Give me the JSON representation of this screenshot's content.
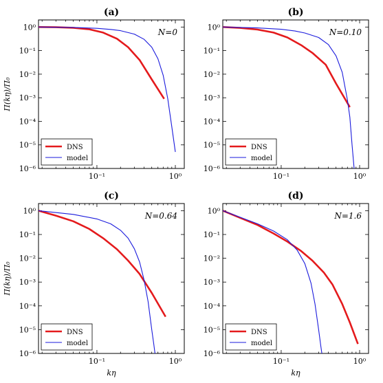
{
  "chart_data": [
    {
      "type": "line",
      "title": "(a)",
      "annotation": "N=0",
      "xlabel": "",
      "ylabel": "Π(kη)/Π₀",
      "xscale": "log",
      "yscale": "log",
      "xlim": [
        0.018,
        1.3
      ],
      "ylim": [
        1e-06,
        2
      ],
      "x_ticks": [
        "10⁻¹",
        "10⁰"
      ],
      "y_ticks": [
        "10⁰",
        "10⁻¹",
        "10⁻²",
        "10⁻³",
        "10⁻⁴",
        "10⁻⁵",
        "10⁻⁶"
      ],
      "legend_position": "lower-left",
      "series": [
        {
          "name": "DNS",
          "color": "#e41a1c",
          "x": [
            0.018,
            0.03,
            0.05,
            0.08,
            0.12,
            0.18,
            0.25,
            0.35,
            0.5,
            0.72
          ],
          "y": [
            1.0,
            0.98,
            0.93,
            0.8,
            0.58,
            0.32,
            0.14,
            0.04,
            0.006,
            0.0009
          ]
        },
        {
          "name": "model",
          "color": "#1a1adc",
          "x": [
            0.018,
            0.05,
            0.1,
            0.15,
            0.2,
            0.3,
            0.4,
            0.5,
            0.6,
            0.7,
            0.8,
            0.9,
            1.0
          ],
          "y": [
            1.0,
            0.96,
            0.88,
            0.79,
            0.7,
            0.5,
            0.3,
            0.14,
            0.045,
            0.009,
            0.0009,
            6e-05,
            5e-06
          ]
        }
      ]
    },
    {
      "type": "line",
      "title": "(b)",
      "annotation": "N=0.10",
      "xlabel": "",
      "ylabel": "",
      "xscale": "log",
      "yscale": "log",
      "xlim": [
        0.018,
        1.3
      ],
      "ylim": [
        1e-06,
        2
      ],
      "x_ticks": [
        "10⁻¹",
        "10⁰"
      ],
      "y_ticks": [
        "10⁰",
        "10⁻¹",
        "10⁻²",
        "10⁻³",
        "10⁻⁴",
        "10⁻⁵",
        "10⁻⁶"
      ],
      "legend_position": "lower-left",
      "series": [
        {
          "name": "DNS",
          "color": "#e41a1c",
          "x": [
            0.018,
            0.03,
            0.05,
            0.08,
            0.12,
            0.18,
            0.25,
            0.37,
            0.5,
            0.75
          ],
          "y": [
            1.0,
            0.92,
            0.78,
            0.58,
            0.36,
            0.17,
            0.08,
            0.025,
            0.004,
            0.0004
          ]
        },
        {
          "name": "model",
          "color": "#1a1adc",
          "x": [
            0.018,
            0.05,
            0.1,
            0.15,
            0.2,
            0.3,
            0.4,
            0.5,
            0.6,
            0.7,
            0.75,
            0.8,
            0.85
          ],
          "y": [
            1.0,
            0.92,
            0.8,
            0.68,
            0.56,
            0.36,
            0.18,
            0.06,
            0.012,
            0.0008,
            0.00015,
            1e-05,
            1e-06
          ]
        }
      ]
    },
    {
      "type": "line",
      "title": "(c)",
      "annotation": "N=0.64",
      "xlabel": "kη",
      "ylabel": "Π(kη)/Π₀",
      "xscale": "log",
      "yscale": "log",
      "xlim": [
        0.018,
        1.3
      ],
      "ylim": [
        1e-06,
        2
      ],
      "x_ticks": [
        "10⁻¹",
        "10⁰"
      ],
      "y_ticks": [
        "10⁰",
        "10⁻¹",
        "10⁻²",
        "10⁻³",
        "10⁻⁴",
        "10⁻⁵",
        "10⁻⁶"
      ],
      "legend_position": "lower-left",
      "series": [
        {
          "name": "DNS",
          "color": "#e41a1c",
          "x": [
            0.018,
            0.03,
            0.05,
            0.08,
            0.12,
            0.18,
            0.25,
            0.35,
            0.5,
            0.75
          ],
          "y": [
            1.0,
            0.62,
            0.36,
            0.17,
            0.07,
            0.024,
            0.008,
            0.0022,
            0.00035,
            3.5e-05
          ]
        },
        {
          "name": "model",
          "color": "#1a1adc",
          "x": [
            0.018,
            0.05,
            0.1,
            0.15,
            0.2,
            0.25,
            0.3,
            0.35,
            0.4,
            0.45,
            0.5,
            0.53,
            0.55
          ],
          "y": [
            1.0,
            0.7,
            0.45,
            0.28,
            0.15,
            0.07,
            0.025,
            0.007,
            0.0012,
            0.00015,
            1e-05,
            2.5e-06,
            1e-06
          ]
        }
      ]
    },
    {
      "type": "line",
      "title": "(d)",
      "annotation": "N=1.6",
      "xlabel": "kη",
      "ylabel": "",
      "xscale": "log",
      "yscale": "log",
      "xlim": [
        0.018,
        1.3
      ],
      "ylim": [
        1e-06,
        2
      ],
      "x_ticks": [
        "10⁻¹",
        "10⁰"
      ],
      "y_ticks": [
        "10⁰",
        "10⁻¹",
        "10⁻²",
        "10⁻³",
        "10⁻⁴",
        "10⁻⁵",
        "10⁻⁶"
      ],
      "legend_position": "lower-left",
      "series": [
        {
          "name": "DNS",
          "color": "#e41a1c",
          "x": [
            0.018,
            0.03,
            0.05,
            0.08,
            0.12,
            0.18,
            0.25,
            0.35,
            0.45,
            0.6,
            0.75,
            0.95
          ],
          "y": [
            1.0,
            0.5,
            0.25,
            0.11,
            0.05,
            0.02,
            0.008,
            0.0025,
            0.0008,
            0.00012,
            2e-05,
            2.5e-06
          ]
        },
        {
          "name": "model",
          "color": "#1a1adc",
          "x": [
            0.018,
            0.05,
            0.08,
            0.12,
            0.16,
            0.2,
            0.24,
            0.27,
            0.3,
            0.32,
            0.33
          ],
          "y": [
            1.0,
            0.28,
            0.14,
            0.06,
            0.022,
            0.006,
            0.0009,
            0.00012,
            1e-05,
            2e-06,
            1e-06
          ]
        }
      ]
    }
  ]
}
